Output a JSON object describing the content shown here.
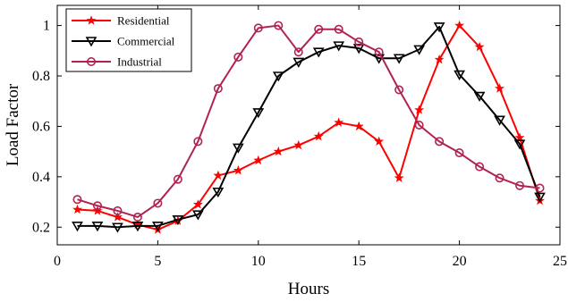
{
  "chart_data": {
    "type": "line",
    "title": "",
    "xlabel": "Hours",
    "ylabel": "Load Factor",
    "xlim": [
      0,
      25
    ],
    "ylim": [
      0.13,
      1.08
    ],
    "xticks": [
      0,
      5,
      10,
      15,
      20,
      25
    ],
    "yticks": [
      0.2,
      0.4,
      0.6,
      0.8,
      1.0
    ],
    "ytick_labels": [
      "0.2",
      "0.4",
      "0.6",
      "0.8",
      "1"
    ],
    "grid": false,
    "legend_position": "top-left",
    "x": [
      1,
      2,
      3,
      4,
      5,
      6,
      7,
      8,
      9,
      10,
      11,
      12,
      13,
      14,
      15,
      16,
      17,
      18,
      19,
      20,
      21,
      22,
      23,
      24
    ],
    "series": [
      {
        "name": "Residential",
        "color": "#ff0000",
        "marker": "star",
        "values": [
          0.27,
          0.265,
          0.24,
          0.21,
          0.19,
          0.225,
          0.29,
          0.405,
          0.425,
          0.465,
          0.5,
          0.525,
          0.56,
          0.615,
          0.6,
          0.54,
          0.395,
          0.665,
          0.865,
          1.0,
          0.915,
          0.75,
          0.555,
          0.305
        ]
      },
      {
        "name": "Commercial",
        "color": "#000000",
        "marker": "triangle-down",
        "values": [
          0.205,
          0.205,
          0.2,
          0.205,
          0.205,
          0.23,
          0.25,
          0.34,
          0.515,
          0.655,
          0.8,
          0.855,
          0.895,
          0.92,
          0.91,
          0.87,
          0.87,
          0.905,
          0.995,
          0.805,
          0.72,
          0.625,
          0.53,
          0.32
        ]
      },
      {
        "name": "Industrial",
        "color": "#b0234f",
        "marker": "circle",
        "values": [
          0.31,
          0.285,
          0.265,
          0.24,
          0.295,
          0.39,
          0.54,
          0.75,
          0.875,
          0.99,
          1.0,
          0.895,
          0.985,
          0.985,
          0.935,
          0.895,
          0.745,
          0.605,
          0.54,
          0.495,
          0.44,
          0.395,
          0.365,
          0.355
        ]
      }
    ]
  }
}
